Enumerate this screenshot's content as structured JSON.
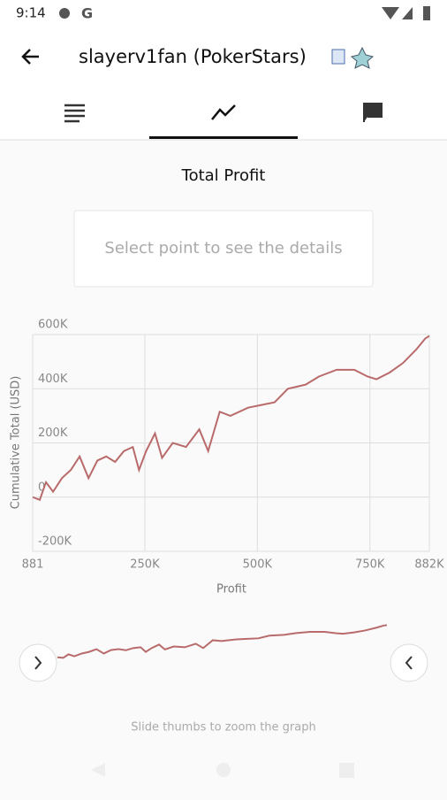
{
  "status_bar": {
    "time": "9:14"
  },
  "header": {
    "title": "slayerv1fan (PokerStars)"
  },
  "chart_data": {
    "type": "line",
    "title": "Total Profit",
    "placeholder": "Select point to see the details",
    "x_label": "Profit",
    "y_label": "Cumulative Total (USD)",
    "x": [
      881,
      16600,
      30400,
      46200,
      65800,
      85500,
      105200,
      124900,
      144600,
      164300,
      184000,
      203600,
      223300,
      237100,
      252900,
      272600,
      288300,
      312000,
      341500,
      371000,
      390700,
      416300,
      440000,
      479300,
      508800,
      538300,
      567800,
      607200,
      636700,
      676000,
      715400,
      744900,
      764600,
      794100,
      823600,
      853100,
      872800,
      882000
    ],
    "series": [
      {
        "name": "Cumulative Total",
        "color": "#b96b6b",
        "values": [
          0,
          -10000,
          55000,
          20000,
          70000,
          100000,
          150000,
          70000,
          135000,
          150000,
          130000,
          170000,
          185000,
          100000,
          170000,
          235000,
          145000,
          200000,
          185000,
          250000,
          170000,
          315000,
          300000,
          330000,
          340000,
          350000,
          400000,
          415000,
          445000,
          470000,
          470000,
          445000,
          435000,
          460000,
          495000,
          545000,
          585000,
          595000
        ]
      }
    ],
    "xlim": [
      881,
      882000
    ],
    "xticks": [
      881,
      {
        "value": 250000,
        "label": "250K"
      },
      {
        "value": 500000,
        "label": "500K"
      },
      {
        "value": 750000,
        "label": "750K"
      },
      {
        "value": 882000,
        "label": "882K"
      }
    ],
    "ylim": [
      -200000,
      600000
    ],
    "yticks": [
      {
        "value": -200000,
        "label": "-200K"
      },
      0,
      {
        "value": 200000,
        "label": "200K"
      },
      {
        "value": 400000,
        "label": "400K"
      },
      {
        "value": 600000,
        "label": "600K"
      }
    ],
    "grid": true,
    "hint": "Slide thumbs to zoom the graph"
  }
}
